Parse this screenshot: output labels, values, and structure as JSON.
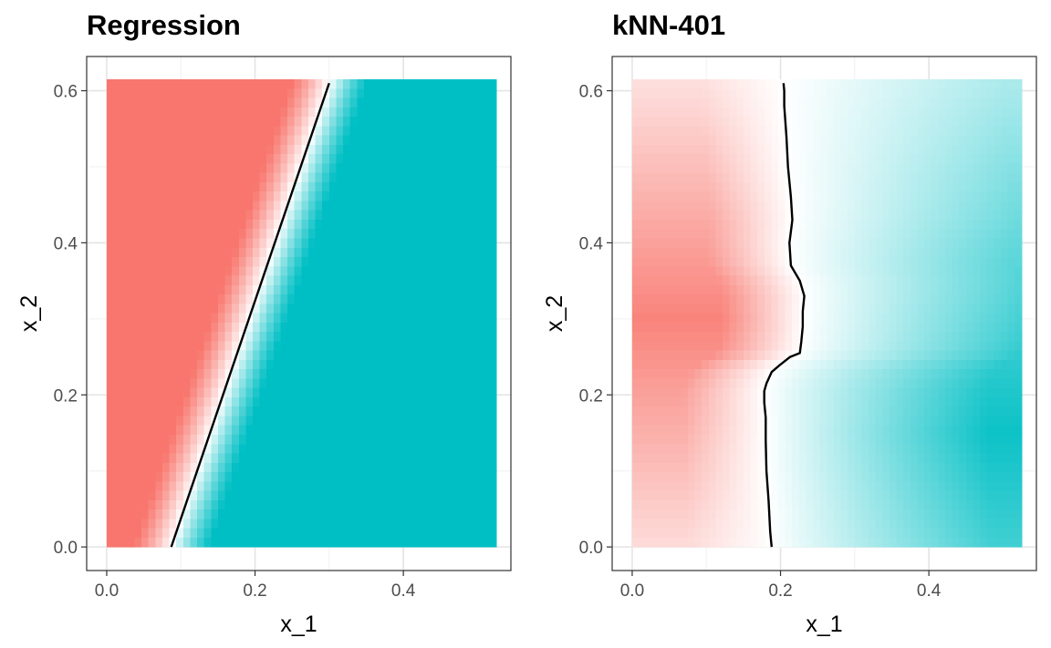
{
  "chart_data": [
    {
      "type": "heatmap",
      "title": "Regression",
      "xlabel": "x_1",
      "ylabel": "x_2",
      "xlim": [
        -0.027,
        0.545
      ],
      "ylim": [
        -0.031,
        0.645
      ],
      "xticks": [
        "0.0",
        "0.2",
        "0.4"
      ],
      "xtick_values": [
        0.0,
        0.2,
        0.4
      ],
      "yticks": [
        "0.0",
        "0.2",
        "0.4",
        "0.6"
      ],
      "ytick_values": [
        0.0,
        0.2,
        0.4,
        0.6
      ],
      "grid": true,
      "fill_extent": {
        "x": [
          0.0,
          0.525
        ],
        "y": [
          0.0,
          0.615
        ]
      },
      "colors": {
        "low": "#F8766D",
        "mid": "#FFFFFF",
        "high": "#00BFC4"
      },
      "boundary": {
        "x": [
          0.087,
          0.3
        ],
        "y": [
          0.0,
          0.61
        ]
      },
      "boundary_color": "#000000"
    },
    {
      "type": "heatmap",
      "title": "kNN-401",
      "xlabel": "x_1",
      "ylabel": "x_2",
      "xlim": [
        -0.027,
        0.545
      ],
      "ylim": [
        -0.031,
        0.645
      ],
      "xticks": [
        "0.0",
        "0.2",
        "0.4"
      ],
      "xtick_values": [
        0.0,
        0.2,
        0.4
      ],
      "yticks": [
        "0.0",
        "0.2",
        "0.4",
        "0.6"
      ],
      "ytick_values": [
        0.0,
        0.2,
        0.4,
        0.6
      ],
      "grid": true,
      "fill_extent": {
        "x": [
          0.0,
          0.525
        ],
        "y": [
          0.0,
          0.615
        ]
      },
      "colors": {
        "low": "#F8766D",
        "mid": "#FFFFFF",
        "high": "#00BFC4"
      },
      "boundary": {
        "x": [
          0.188,
          0.186,
          0.184,
          0.181,
          0.18,
          0.18,
          0.178,
          0.178,
          0.181,
          0.188,
          0.2,
          0.213,
          0.226,
          0.228,
          0.23,
          0.23,
          0.232,
          0.226,
          0.214,
          0.212,
          0.216,
          0.214,
          0.21,
          0.208,
          0.205,
          0.205,
          0.204
        ],
        "y": [
          0.0,
          0.02,
          0.06,
          0.1,
          0.14,
          0.17,
          0.19,
          0.205,
          0.215,
          0.23,
          0.24,
          0.25,
          0.255,
          0.27,
          0.29,
          0.31,
          0.33,
          0.35,
          0.37,
          0.4,
          0.43,
          0.46,
          0.5,
          0.54,
          0.58,
          0.6,
          0.61
        ]
      },
      "boundary_color": "#000000"
    }
  ]
}
